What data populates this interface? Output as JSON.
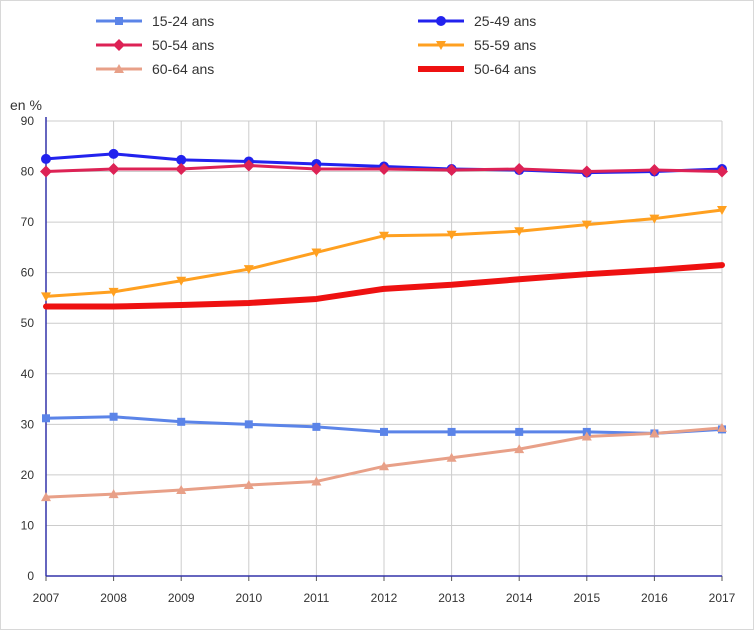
{
  "chart_data": {
    "type": "line",
    "title": "",
    "xlabel": "",
    "ylabel": "en %",
    "ylim": [
      0,
      90
    ],
    "yticks": [
      0,
      10,
      20,
      30,
      40,
      50,
      60,
      70,
      80,
      90
    ],
    "grid": true,
    "legend_position": "top",
    "categories": [
      "2007",
      "2008",
      "2009",
      "2010",
      "2011",
      "2012",
      "2013",
      "2014",
      "2015",
      "2016",
      "2017"
    ],
    "series": [
      {
        "name": "15-24 ans",
        "color": "#5b84e8",
        "marker": "square",
        "values": [
          31.2,
          31.5,
          30.5,
          30.0,
          29.5,
          28.5,
          28.5,
          28.5,
          28.5,
          28.2,
          29.0
        ]
      },
      {
        "name": "25-49 ans",
        "color": "#2222ee",
        "marker": "circle",
        "values": [
          82.5,
          83.5,
          82.3,
          82.0,
          81.5,
          81.0,
          80.5,
          80.3,
          79.8,
          80.0,
          80.5
        ]
      },
      {
        "name": "50-54 ans",
        "color": "#dd2255",
        "marker": "diamond",
        "values": [
          80.0,
          80.5,
          80.5,
          81.2,
          80.5,
          80.5,
          80.3,
          80.5,
          80.0,
          80.3,
          80.0
        ]
      },
      {
        "name": "55-59 ans",
        "color": "#ffa020",
        "marker": "triangle-down",
        "values": [
          55.3,
          56.2,
          58.4,
          60.7,
          64.0,
          67.3,
          67.5,
          68.2,
          69.5,
          70.7,
          72.4
        ]
      },
      {
        "name": "60-64 ans",
        "color": "#e8a088",
        "marker": "triangle-up",
        "values": [
          15.6,
          16.2,
          17.0,
          18.0,
          18.7,
          21.7,
          23.4,
          25.1,
          27.6,
          28.2,
          29.3
        ]
      },
      {
        "name": "50-64 ans",
        "color": "#ee1111",
        "marker": "none",
        "thick": true,
        "values": [
          53.3,
          53.3,
          53.6,
          54.0,
          54.8,
          56.8,
          57.6,
          58.7,
          59.7,
          60.5,
          61.5
        ]
      }
    ]
  }
}
